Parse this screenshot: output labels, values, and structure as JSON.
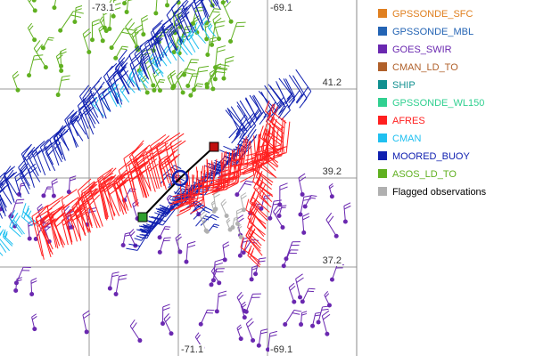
{
  "map": {
    "lon_labels_top": [
      "-73.1",
      "-69.1"
    ],
    "lat_labels": [
      "41.2",
      "39.2",
      "37.2"
    ],
    "lon_labels_bottom": [
      "-71.1",
      "-69.1"
    ],
    "legend": [
      {
        "label": "GPSSONDE_SFC",
        "color": "#e08020"
      },
      {
        "label": "GPSSONDE_MBL",
        "color": "#2464b4"
      },
      {
        "label": "GOES_SWIR",
        "color": "#6a28b0"
      },
      {
        "label": "CMAN_LD_TO",
        "color": "#b0602a"
      },
      {
        "label": "SHIP",
        "color": "#109090"
      },
      {
        "label": "GPSSONDE_WL150",
        "color": "#30d090"
      },
      {
        "label": "AFRES",
        "color": "#ff2020"
      },
      {
        "label": "CMAN",
        "color": "#20c0f0"
      },
      {
        "label": "MOORED_BUOY",
        "color": "#1020b0"
      },
      {
        "label": "ASOS_LD_TO",
        "color": "#60b020"
      },
      {
        "label": "Flagged observations",
        "color": "#b0b0b0"
      }
    ]
  }
}
